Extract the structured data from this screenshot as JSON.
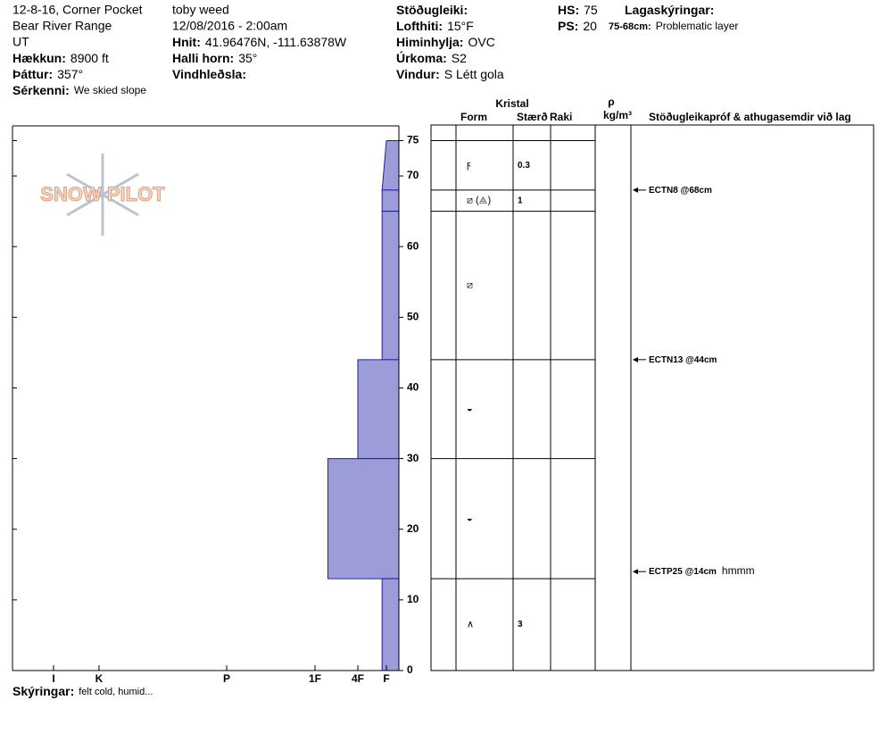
{
  "header": {
    "columns": [
      [
        "12-8-16, Corner Pocket",
        "Bear River Range",
        "UT",
        {
          "label": "Hækkun:",
          "value": "8900 ft"
        },
        {
          "label": "Þáttur:",
          "value": "357°"
        },
        {
          "label": "Sérkenni:",
          "value": "We skied slope"
        }
      ],
      [
        "toby weed",
        "12/08/2016 - 2:00am",
        {
          "label": "Hnit:",
          "value": "41.96476N, -111.63878W"
        },
        {
          "label": "Halli horn:",
          "value": "35°"
        },
        {
          "label": "Vindhleðsla:"
        }
      ],
      [
        {
          "label": "Stöðugleiki:"
        },
        {
          "label": "Lofthiti:",
          "value": "15°F"
        },
        {
          "label": "Himinhylja:",
          "value": "OVC"
        },
        {
          "label": "Úrkoma:",
          "value": "S2"
        },
        {
          "label": "Vindur:",
          "value": "S Létt gola"
        }
      ],
      [
        {
          "label": "HS:",
          "value": "75"
        },
        {
          "label": "PS:",
          "value": "20"
        }
      ],
      [
        {
          "label": "Lagaskýringar:"
        },
        {
          "label": "75-68cm:",
          "value": "Problematic layer"
        }
      ]
    ]
  },
  "logo": "SNOW PILOT",
  "profile": {
    "ylim": [
      0,
      75
    ],
    "yticks": [
      0,
      10,
      20,
      30,
      40,
      50,
      60,
      70,
      75
    ],
    "hardness_ticks": [
      {
        "value": 6,
        "label": "I"
      },
      {
        "value": 5,
        "label": "K"
      },
      {
        "value": 4,
        "label": "P"
      },
      {
        "value": 3,
        "label": "1F"
      },
      {
        "value": 2,
        "label": "4F"
      },
      {
        "value": 1,
        "label": "F"
      }
    ],
    "color": "#9c9cd8",
    "layers": [
      {
        "top": 75,
        "bottom": 68,
        "hardness_top": 1,
        "hardness_bottom": 1.15,
        "form": "ϝ",
        "size": 0.3
      },
      {
        "top": 68,
        "bottom": 65,
        "hardness_top": 1.15,
        "hardness_bottom": 1.15,
        "form": "⧄ (⟁)",
        "size": 1
      },
      {
        "top": 65,
        "bottom": 44,
        "hardness_top": 1.15,
        "hardness_bottom": 1.15,
        "form": "⧄"
      },
      {
        "top": 44,
        "bottom": 30,
        "hardness_top": 2,
        "hardness_bottom": 2,
        "form": "◒"
      },
      {
        "top": 30,
        "bottom": 13,
        "hardness_top": 2.7,
        "hardness_bottom": 2.7,
        "form": "◒"
      },
      {
        "top": 13,
        "bottom": 0,
        "hardness_top": 1.15,
        "hardness_bottom": 1.15,
        "form": "∧",
        "size": 3
      }
    ]
  },
  "table_headers": {
    "crystal": "Kristal",
    "form": "Form",
    "size": "Stærð",
    "moisture": "Raki",
    "rho": "ρ",
    "density": "kg/m³",
    "tests": "Stöðugleikapróf & athugasemdir við lag"
  },
  "tests": [
    {
      "depth": 68,
      "label": "ECTN8 @68cm"
    },
    {
      "depth": 44,
      "label": "ECTN13 @44cm"
    },
    {
      "depth": 14,
      "label": "ECTP25 @14cm",
      "comment": "hmmm"
    }
  ],
  "notes": {
    "label": "Skýringar:",
    "value": "felt cold, humid..."
  }
}
